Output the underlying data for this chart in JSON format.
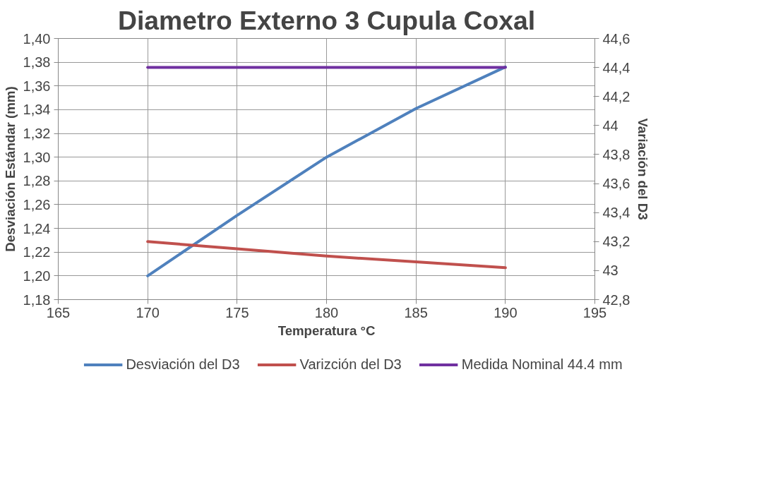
{
  "chart_data": {
    "type": "line",
    "title": "Diametro Externo 3 Cupula Coxal",
    "xlabel": "Temperatura °C",
    "ylabel": "Desviación Estándar (mm)",
    "y2label": "Variación del D3",
    "series": [
      {
        "name": "Desviación del D3",
        "color": "#4f81bd",
        "x": [
          170,
          175,
          180,
          185,
          190
        ],
        "values": [
          1.2,
          1.251,
          1.3,
          1.341,
          1.376
        ]
      },
      {
        "name": "Varizción del D3",
        "color": "#c0504d",
        "axis": "y2",
        "x": [
          170,
          175,
          180,
          185,
          190
        ],
        "values": [
          43.2,
          43.15,
          43.1,
          43.06,
          43.02
        ]
      },
      {
        "name": "Medida Nominal 44.4 mm",
        "color": "#7030a0",
        "axis": "y2",
        "x": [
          170,
          190
        ],
        "values": [
          44.4,
          44.4
        ]
      }
    ],
    "xlim": [
      165,
      195
    ],
    "xticks": [
      165,
      170,
      175,
      180,
      185,
      190,
      195
    ],
    "ylim": [
      1.18,
      1.4
    ],
    "yticks": [
      {
        "value": 1.18,
        "label": "1,18"
      },
      {
        "value": 1.2,
        "label": "1,20"
      },
      {
        "value": 1.22,
        "label": "1,22"
      },
      {
        "value": 1.24,
        "label": "1,24"
      },
      {
        "value": 1.26,
        "label": "1,26"
      },
      {
        "value": 1.28,
        "label": "1,28"
      },
      {
        "value": 1.3,
        "label": "1,30"
      },
      {
        "value": 1.32,
        "label": "1,32"
      },
      {
        "value": 1.34,
        "label": "1,34"
      },
      {
        "value": 1.36,
        "label": "1,36"
      },
      {
        "value": 1.38,
        "label": "1,38"
      },
      {
        "value": 1.4,
        "label": "1,40"
      }
    ],
    "y2lim": [
      42.8,
      44.6
    ],
    "y2ticks": [
      {
        "value": 42.8,
        "label": "42,8"
      },
      43,
      {
        "value": 43.2,
        "label": "43,2"
      },
      {
        "value": 43.4,
        "label": "43,4"
      },
      {
        "value": 43.6,
        "label": "43,6"
      },
      {
        "value": 43.8,
        "label": "43,8"
      },
      44,
      {
        "value": 44.2,
        "label": "44,2"
      },
      {
        "value": 44.4,
        "label": "44,4"
      },
      {
        "value": 44.6,
        "label": "44,6"
      }
    ],
    "grid": true,
    "legend": "bottom",
    "marker": "none",
    "line_style": "solid"
  }
}
